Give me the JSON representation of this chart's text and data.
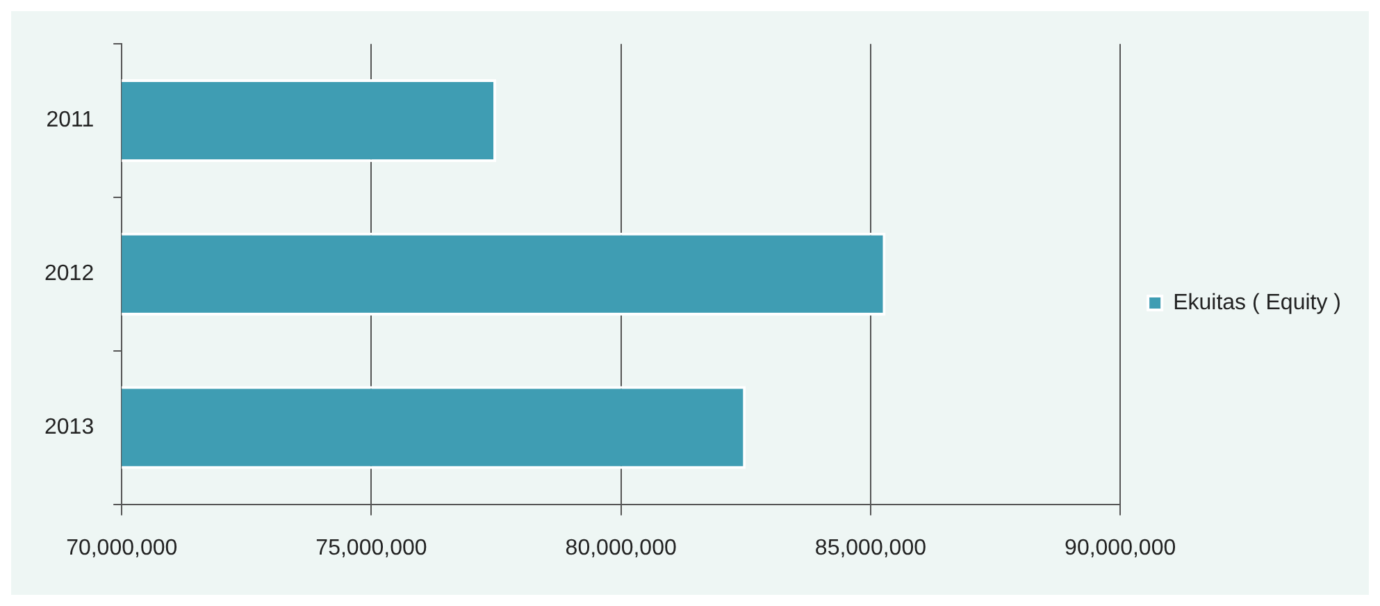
{
  "chart_data": {
    "type": "bar",
    "orientation": "horizontal",
    "categories": [
      "2011",
      "2012",
      "2013"
    ],
    "series": [
      {
        "name": "Ekuitas ( Equity )",
        "color": "#3f9db3",
        "values": [
          77500000,
          85300000,
          82500000
        ]
      }
    ],
    "xlim": [
      70000000,
      90000000
    ],
    "xticks": [
      {
        "value": 70000000,
        "label": "70,000,000"
      },
      {
        "value": 75000000,
        "label": "75,000,000"
      },
      {
        "value": 80000000,
        "label": "80,000,000"
      },
      {
        "value": 85000000,
        "label": "85,000,000"
      },
      {
        "value": 90000000,
        "label": "90,000,000"
      }
    ],
    "grid": "x",
    "legend": "right"
  }
}
